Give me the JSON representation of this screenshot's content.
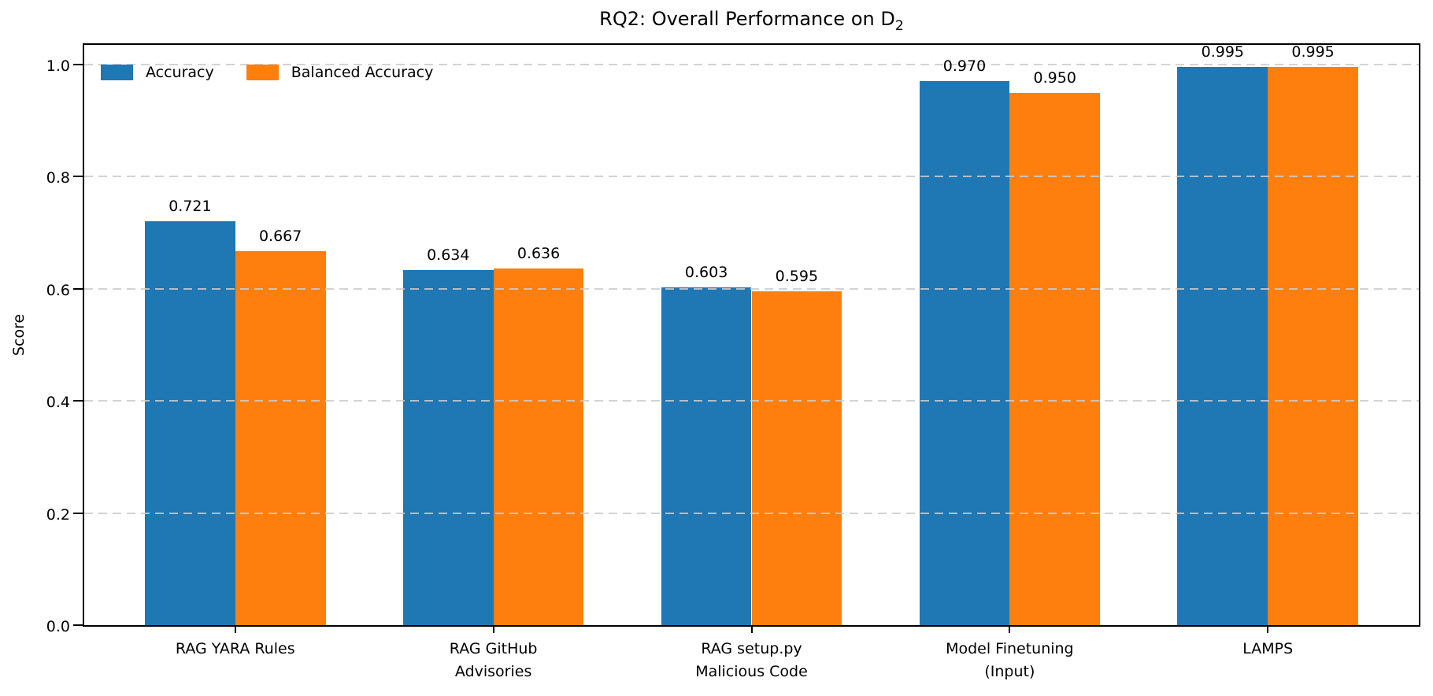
{
  "chart_data": {
    "type": "bar",
    "title": "RQ2: Overall Performance on D₂",
    "title_parts": {
      "prefix": "RQ2: Overall Performance on D",
      "sub": "2"
    },
    "xlabel": "",
    "ylabel": "Score",
    "categories": [
      "RAG YARA Rules",
      "RAG GitHub\nAdvisories",
      "RAG setup.py\nMalicious Code",
      "Model Finetuning\n(Input)",
      "LAMPS"
    ],
    "series": [
      {
        "name": "Accuracy",
        "color": "#1f77b4",
        "values": [
          0.721,
          0.634,
          0.603,
          0.97,
          0.995
        ],
        "labels": [
          "0.721",
          "0.634",
          "0.603",
          "0.970",
          "0.995"
        ]
      },
      {
        "name": "Balanced Accuracy",
        "color": "#ff7f0e",
        "values": [
          0.667,
          0.636,
          0.595,
          0.95,
          0.995
        ],
        "labels": [
          "0.667",
          "0.636",
          "0.595",
          "0.950",
          "0.995"
        ]
      }
    ],
    "ylim": [
      0,
      1.035
    ],
    "yticks": [
      0.0,
      0.2,
      0.4,
      0.6,
      0.8,
      1.0
    ],
    "ytick_labels": [
      "0.0",
      "0.2",
      "0.4",
      "0.6",
      "0.8",
      "1.0"
    ],
    "bar_width": 0.35,
    "grid": "y, dashed, drawn above bars",
    "grid_color": "#cbcbcb",
    "legend_position": "upper-left, horizontal, frameless",
    "spines": "full box, black",
    "background": "#ffffff"
  }
}
